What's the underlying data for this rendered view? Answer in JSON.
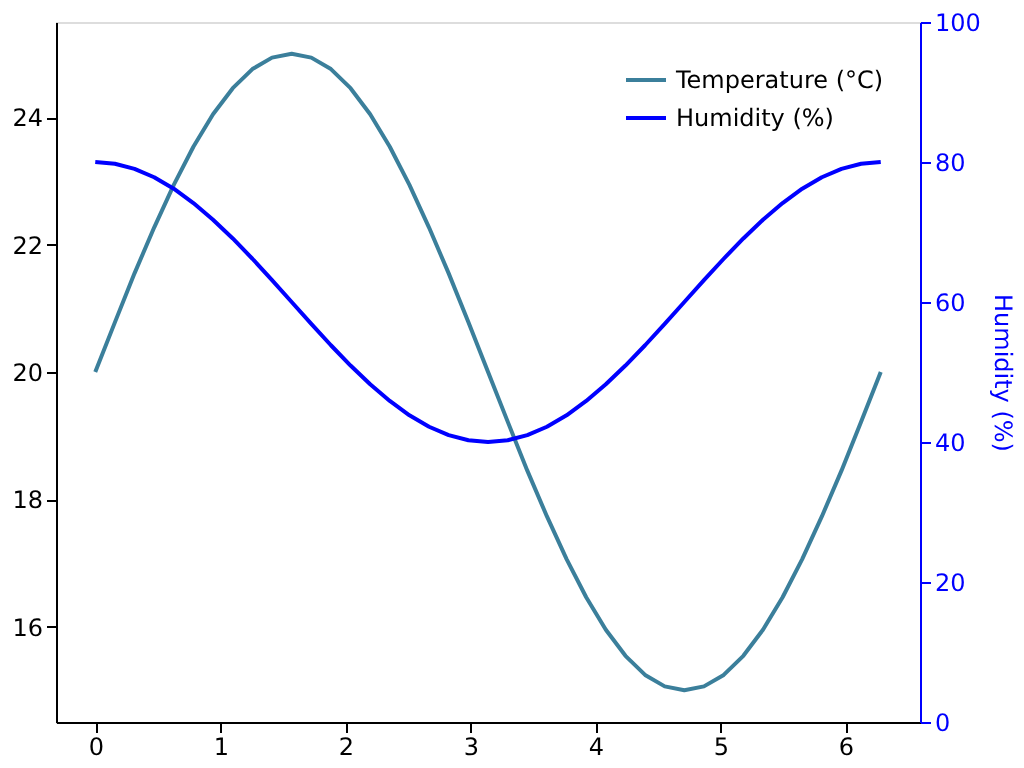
{
  "chart_data": {
    "type": "line",
    "x": [
      0,
      0.157,
      0.314,
      0.471,
      0.628,
      0.785,
      0.942,
      1.1,
      1.257,
      1.414,
      1.571,
      1.728,
      1.885,
      2.042,
      2.199,
      2.356,
      2.513,
      2.67,
      2.827,
      2.985,
      3.142,
      3.299,
      3.456,
      3.613,
      3.77,
      3.927,
      4.084,
      4.241,
      4.398,
      4.555,
      4.712,
      4.869,
      5.027,
      5.184,
      5.341,
      5.498,
      5.655,
      5.812,
      5.969,
      6.126,
      6.283
    ],
    "series": [
      {
        "name": "Temperature (°C)",
        "color": "#3b7f9b",
        "values": [
          20,
          20.78,
          21.55,
          22.27,
          22.94,
          23.54,
          24.05,
          24.46,
          24.76,
          24.94,
          25,
          24.94,
          24.76,
          24.46,
          24.05,
          23.54,
          22.94,
          22.27,
          21.55,
          20.78,
          20,
          19.22,
          18.45,
          17.73,
          17.06,
          16.46,
          15.95,
          15.54,
          15.24,
          15.06,
          15,
          15.06,
          15.24,
          15.54,
          15.95,
          16.46,
          17.06,
          17.73,
          18.45,
          19.22,
          20
        ]
      },
      {
        "name": "Humidity (%)",
        "color": "#0000ff",
        "axis": "y2",
        "values": [
          80,
          79.75,
          79.02,
          77.82,
          76.18,
          74.14,
          71.76,
          69.08,
          66.18,
          63.13,
          60,
          56.87,
          53.82,
          50.92,
          48.24,
          45.86,
          43.82,
          42.18,
          40.98,
          40.25,
          40,
          40.25,
          40.98,
          42.18,
          43.82,
          45.86,
          48.24,
          50.92,
          53.82,
          56.87,
          60,
          63.13,
          66.18,
          69.08,
          71.76,
          74.14,
          76.18,
          77.82,
          79.02,
          79.75,
          80
        ]
      }
    ],
    "xlim": [
      -0.314,
      6.597
    ],
    "xticks": [
      0,
      1,
      2,
      3,
      4,
      5,
      6
    ],
    "ylim": [
      14.5,
      25.5
    ],
    "yticks": [
      16,
      18,
      20,
      22,
      24
    ],
    "y2label": "Humidity (%)",
    "y2lim": [
      0,
      100
    ],
    "y2ticks": [
      0,
      20,
      40,
      60,
      80,
      100
    ],
    "legend": "top right",
    "grid": false,
    "line_style": "solid"
  }
}
